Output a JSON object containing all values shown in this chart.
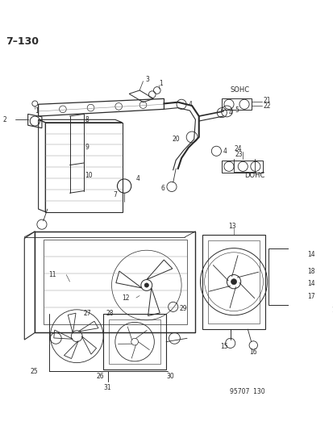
{
  "title": "7–130",
  "background_color": "#ffffff",
  "page_number": "95707  130",
  "fig_width": 4.14,
  "fig_height": 5.33,
  "dpi": 100,
  "gray": "#2a2a2a",
  "light_gray": "#888888",
  "lw_main": 0.9,
  "lw_thin": 0.5,
  "fontsize_label": 5.5,
  "fontsize_title": 9
}
